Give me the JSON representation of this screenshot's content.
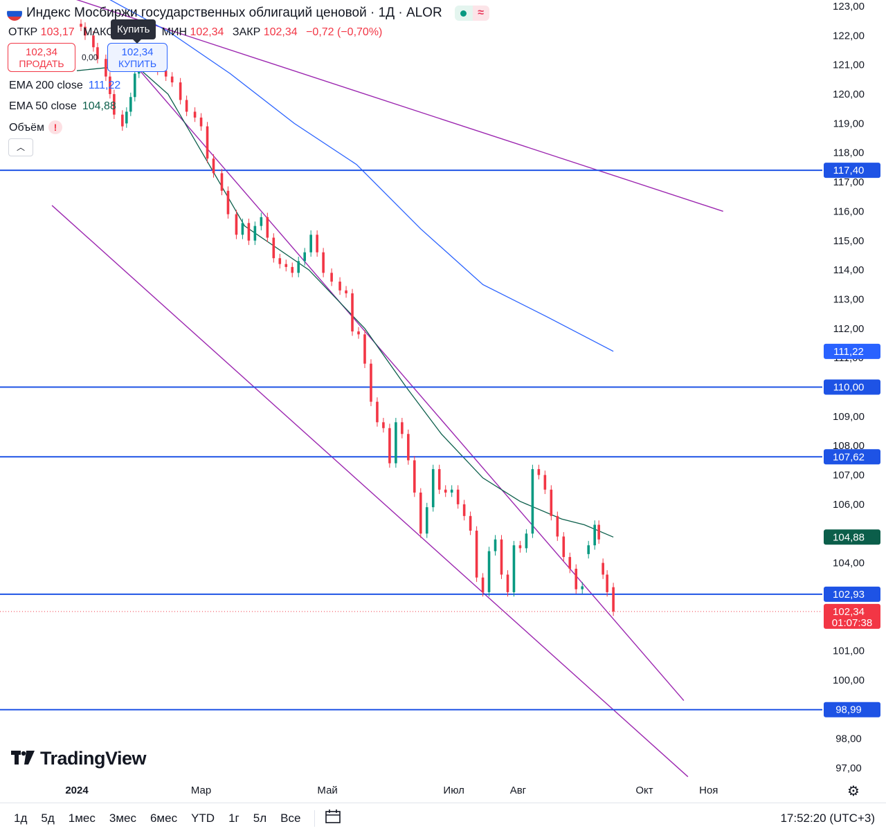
{
  "header": {
    "title": "Индекс Мосбиржи государственных облигаций ценовой · 1Д · ALOR",
    "wave_icon": "≈"
  },
  "ohlc": {
    "open_label": "ОТКР",
    "open": "103,17",
    "high_label": "МАКС",
    "low_label": "МИН",
    "low": "102,34",
    "close_label": "ЗАКР",
    "close": "102,34",
    "change": "−0,72 (−0,70%)"
  },
  "trade": {
    "sell_price": "102,34",
    "sell_label": "ПРОДАТЬ",
    "buy_price": "102,34",
    "buy_label": "КУПИТЬ",
    "spread": "0,00",
    "tooltip": "Купить"
  },
  "indicators": {
    "ema200_label": "EMA 200 close",
    "ema200_value": "111,22",
    "ema50_label": "EMA 50 close",
    "ema50_value": "104,88",
    "volume_label": "Объём",
    "volume_warning": "!"
  },
  "colors": {
    "up": "#089981",
    "down": "#f23645",
    "ema200": "#2962ff",
    "ema50": "#0b5e4a",
    "hline": "#1e53e5",
    "trendline": "#9c27b0"
  },
  "logo": {
    "text": "TradingView"
  },
  "toolbar": {
    "ranges": [
      "1д",
      "5д",
      "1мес",
      "3мес",
      "6мес",
      "YTD",
      "1г",
      "5л",
      "Все"
    ],
    "time": "17:52:20 (UTC+3)"
  },
  "chart_data": {
    "type": "candlestick",
    "ylim": [
      96.5,
      123.2
    ],
    "y_ticks": [
      123,
      122,
      121,
      120,
      119,
      118,
      117,
      116,
      115,
      114,
      113,
      112,
      111,
      110,
      109,
      108,
      107,
      106,
      105,
      104,
      103,
      102,
      101,
      100,
      99,
      98,
      97
    ],
    "y_tick_labels": [
      "123,00",
      "122,00",
      "121,00",
      "120,00",
      "119,00",
      "118,00",
      "117,00",
      "116,00",
      "115,00",
      "114,00",
      "113,00",
      "112,00",
      "111,00",
      "110,00",
      "109,00",
      "108,00",
      "107,00",
      "106,00",
      "105,00",
      "104,00",
      "103,00",
      "102,00",
      "101,00",
      "100,00",
      "99,00",
      "98,00",
      "97,00"
    ],
    "x_labels": [
      {
        "label": "2024",
        "date": "2024-01-01"
      },
      {
        "label": "Мар",
        "date": "2024-03-01"
      },
      {
        "label": "Май",
        "date": "2024-05-01"
      },
      {
        "label": "Июл",
        "date": "2024-07-01"
      },
      {
        "label": "Авг",
        "date": "2024-08-01"
      },
      {
        "label": "Окт",
        "date": "2024-10-01"
      },
      {
        "label": "Ноя",
        "date": "2024-11-01"
      }
    ],
    "horizontal_levels": [
      {
        "value": 117.4,
        "label": "117,40"
      },
      {
        "value": 110.0,
        "label": "110,00"
      },
      {
        "value": 107.62,
        "label": "107,62"
      },
      {
        "value": 102.93,
        "label": "102,93"
      },
      {
        "value": 98.99,
        "label": "98,99"
      }
    ],
    "price_badges": [
      {
        "value": 111.22,
        "label": "111,22",
        "kind": "ema200"
      },
      {
        "value": 104.88,
        "label": "104,88",
        "kind": "ema50"
      },
      {
        "value": 102.34,
        "label": "102,34",
        "sub": "01:07:38",
        "kind": "last"
      }
    ],
    "trendlines": [
      {
        "from": [
          "2023-12-20",
          123.5
        ],
        "to": [
          "2024-11-08",
          116.0
        ]
      },
      {
        "from": [
          "2023-12-20",
          116.2
        ],
        "to": [
          "2024-10-22",
          96.7
        ]
      },
      {
        "from": [
          "2024-01-29",
          121.0
        ],
        "to": [
          "2024-10-20",
          99.3
        ]
      }
    ],
    "ema200": [
      [
        "2024-01-15",
        123.3
      ],
      [
        "2024-02-15",
        122.1
      ],
      [
        "2024-03-15",
        120.7
      ],
      [
        "2024-04-15",
        119.0
      ],
      [
        "2024-05-15",
        117.6
      ],
      [
        "2024-06-15",
        115.4
      ],
      [
        "2024-07-15",
        113.5
      ],
      [
        "2024-08-15",
        112.4
      ],
      [
        "2024-09-16",
        111.22
      ]
    ],
    "ema50": [
      [
        "2024-01-01",
        120.8
      ],
      [
        "2024-01-29",
        121.0
      ],
      [
        "2024-02-14",
        120.0
      ],
      [
        "2024-03-04",
        117.7
      ],
      [
        "2024-03-22",
        115.5
      ],
      [
        "2024-04-22",
        114.0
      ],
      [
        "2024-05-19",
        112.0
      ],
      [
        "2024-06-08",
        110.0
      ],
      [
        "2024-06-25",
        108.4
      ],
      [
        "2024-07-15",
        106.9
      ],
      [
        "2024-08-02",
        106.1
      ],
      [
        "2024-08-22",
        105.5
      ],
      [
        "2024-09-02",
        105.3
      ],
      [
        "2024-09-16",
        104.88
      ]
    ],
    "candles": [
      [
        "2024-01-03",
        122.4,
        122.3
      ],
      [
        "2024-01-05",
        122.3,
        122.0
      ],
      [
        "2024-01-09",
        122.0,
        121.6
      ],
      [
        "2024-01-11",
        121.6,
        121.2
      ],
      [
        "2024-01-15",
        121.2,
        120.6
      ],
      [
        "2024-01-17",
        120.6,
        120.0
      ],
      [
        "2024-01-19",
        120.0,
        119.3
      ],
      [
        "2024-01-23",
        119.3,
        118.9
      ],
      [
        "2024-01-25",
        119.0,
        119.4
      ],
      [
        "2024-01-27",
        119.4,
        119.9
      ],
      [
        "2024-01-29",
        119.9,
        120.7
      ],
      [
        "2024-01-31",
        120.7,
        121.3
      ],
      [
        "2024-02-02",
        121.3,
        121.2
      ],
      [
        "2024-02-06",
        121.2,
        121.0
      ],
      [
        "2024-02-09",
        121.0,
        120.8
      ],
      [
        "2024-02-13",
        120.8,
        120.6
      ],
      [
        "2024-02-16",
        120.6,
        120.4
      ],
      [
        "2024-02-20",
        120.4,
        119.8
      ],
      [
        "2024-02-23",
        119.8,
        119.4
      ],
      [
        "2024-02-27",
        119.4,
        119.2
      ],
      [
        "2024-03-01",
        119.2,
        118.9
      ],
      [
        "2024-03-04",
        118.9,
        117.8
      ],
      [
        "2024-03-07",
        117.8,
        117.3
      ],
      [
        "2024-03-11",
        117.3,
        116.7
      ],
      [
        "2024-03-14",
        116.7,
        115.9
      ],
      [
        "2024-03-18",
        115.9,
        115.2
      ],
      [
        "2024-03-21",
        115.2,
        115.6
      ],
      [
        "2024-03-24",
        115.6,
        115.0
      ],
      [
        "2024-03-27",
        115.0,
        115.5
      ],
      [
        "2024-03-30",
        115.5,
        115.8
      ],
      [
        "2024-04-02",
        115.8,
        115.1
      ],
      [
        "2024-04-05",
        115.1,
        114.4
      ],
      [
        "2024-04-08",
        114.4,
        114.2
      ],
      [
        "2024-04-11",
        114.2,
        114.1
      ],
      [
        "2024-04-14",
        114.1,
        113.9
      ],
      [
        "2024-04-17",
        113.9,
        114.3
      ],
      [
        "2024-04-20",
        114.3,
        114.6
      ],
      [
        "2024-04-23",
        114.6,
        115.2
      ],
      [
        "2024-04-26",
        115.2,
        114.6
      ],
      [
        "2024-04-29",
        114.6,
        113.9
      ],
      [
        "2024-05-03",
        113.9,
        113.6
      ],
      [
        "2024-05-07",
        113.6,
        113.3
      ],
      [
        "2024-05-10",
        113.3,
        113.2
      ],
      [
        "2024-05-13",
        113.2,
        111.9
      ],
      [
        "2024-05-16",
        111.9,
        111.8
      ],
      [
        "2024-05-19",
        111.8,
        110.8
      ],
      [
        "2024-05-22",
        110.8,
        109.5
      ],
      [
        "2024-05-25",
        109.5,
        108.8
      ],
      [
        "2024-05-28",
        108.8,
        108.6
      ],
      [
        "2024-05-31",
        108.6,
        107.4
      ],
      [
        "2024-06-03",
        107.4,
        108.8
      ],
      [
        "2024-06-06",
        108.8,
        108.4
      ],
      [
        "2024-06-09",
        108.4,
        107.5
      ],
      [
        "2024-06-12",
        107.5,
        106.4
      ],
      [
        "2024-06-15",
        106.4,
        105.0
      ],
      [
        "2024-06-18",
        105.0,
        105.9
      ],
      [
        "2024-06-21",
        105.9,
        107.2
      ],
      [
        "2024-06-24",
        107.2,
        106.5
      ],
      [
        "2024-06-27",
        106.5,
        106.4
      ],
      [
        "2024-06-30",
        106.4,
        106.5
      ],
      [
        "2024-07-03",
        106.5,
        106.0
      ],
      [
        "2024-07-06",
        106.0,
        105.6
      ],
      [
        "2024-07-09",
        105.6,
        105.1
      ],
      [
        "2024-07-12",
        105.1,
        103.5
      ],
      [
        "2024-07-15",
        103.5,
        103.0
      ],
      [
        "2024-07-18",
        103.0,
        104.4
      ],
      [
        "2024-07-21",
        104.4,
        104.8
      ],
      [
        "2024-07-24",
        104.8,
        103.6
      ],
      [
        "2024-07-27",
        103.6,
        103.0
      ],
      [
        "2024-07-30",
        103.0,
        104.6
      ],
      [
        "2024-08-02",
        104.6,
        104.5
      ],
      [
        "2024-08-05",
        104.5,
        105.0
      ],
      [
        "2024-08-08",
        105.0,
        107.2
      ],
      [
        "2024-08-11",
        107.2,
        107.0
      ],
      [
        "2024-08-14",
        107.0,
        106.5
      ],
      [
        "2024-08-17",
        106.5,
        105.6
      ],
      [
        "2024-08-20",
        105.6,
        104.9
      ],
      [
        "2024-08-23",
        104.9,
        104.2
      ],
      [
        "2024-08-26",
        104.2,
        103.8
      ],
      [
        "2024-08-29",
        103.8,
        103.1
      ],
      [
        "2024-09-01",
        103.1,
        103.2
      ],
      [
        "2024-09-04",
        104.3,
        104.6
      ],
      [
        "2024-09-07",
        104.6,
        105.3
      ],
      [
        "2024-09-09",
        105.3,
        104.8
      ],
      [
        "2024-09-11",
        104.0,
        103.6
      ],
      [
        "2024-09-13",
        103.6,
        103.0
      ],
      [
        "2024-09-16",
        103.17,
        102.34
      ]
    ]
  }
}
